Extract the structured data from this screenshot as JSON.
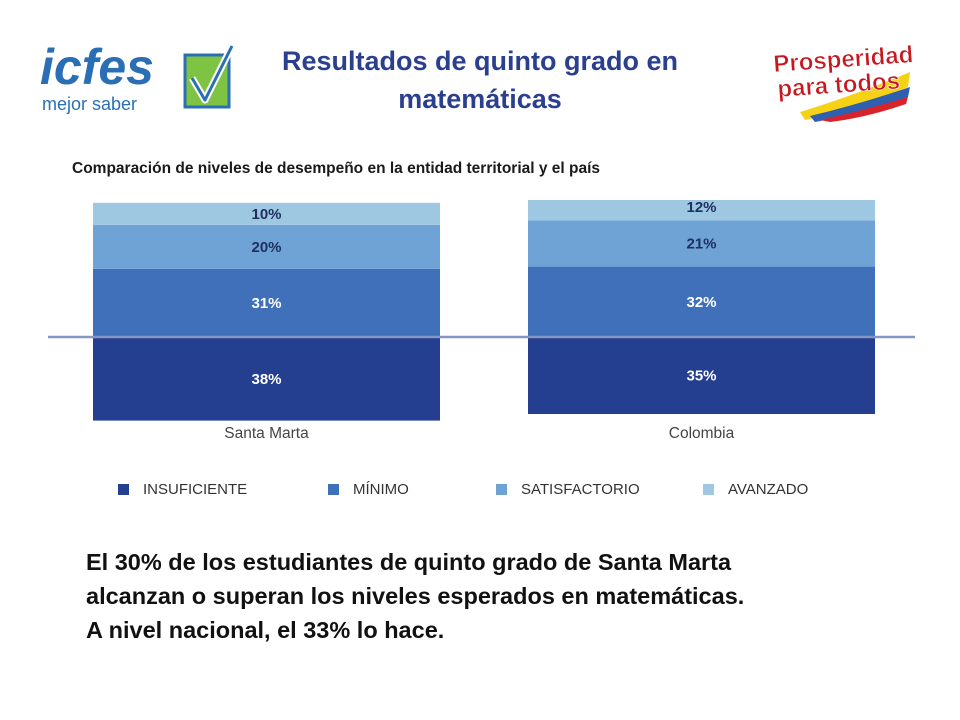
{
  "header": {
    "title_line1": "Resultados de quinto grado en",
    "title_line2": "matemáticas",
    "logo_left": {
      "name": "icfes",
      "tagline": "mejor saber"
    },
    "logo_right": {
      "line1": "Prosperidad",
      "line2": "para todos"
    }
  },
  "colors": {
    "insuficiente": "#243f8f",
    "minimo": "#3f70b9",
    "satisfactorio": "#6fa3d6",
    "avanzado": "#9ec8e2",
    "title": "#2b3f8f"
  },
  "chart_data": {
    "type": "bar",
    "stacked": true,
    "title": "Comparación de niveles de desempeño en la entidad territorial y el país",
    "categories": [
      "Santa Marta",
      "Colombia"
    ],
    "series": [
      {
        "name": "INSUFICIENTE",
        "values": [
          38,
          35
        ],
        "labels": [
          "38%",
          "35%"
        ]
      },
      {
        "name": "MÍNIMO",
        "values": [
          31,
          32
        ],
        "labels": [
          "31%",
          "32%"
        ]
      },
      {
        "name": "SATISFACTORIO",
        "values": [
          20,
          21
        ],
        "labels": [
          "20%",
          "21%"
        ]
      },
      {
        "name": "AVANZADO",
        "values": [
          10,
          12
        ],
        "labels": [
          "10%",
          "12%"
        ]
      }
    ],
    "baseline_split": "between INSUFICIENTE and MÍNIMO",
    "legend_position": "bottom",
    "grid": false
  },
  "summary": {
    "line1": "El 30% de los estudiantes de quinto grado de Santa Marta",
    "line2": "alcanzan o superan los niveles esperados en matemáticas.",
    "line3": "A nivel nacional, el 33% lo hace."
  }
}
